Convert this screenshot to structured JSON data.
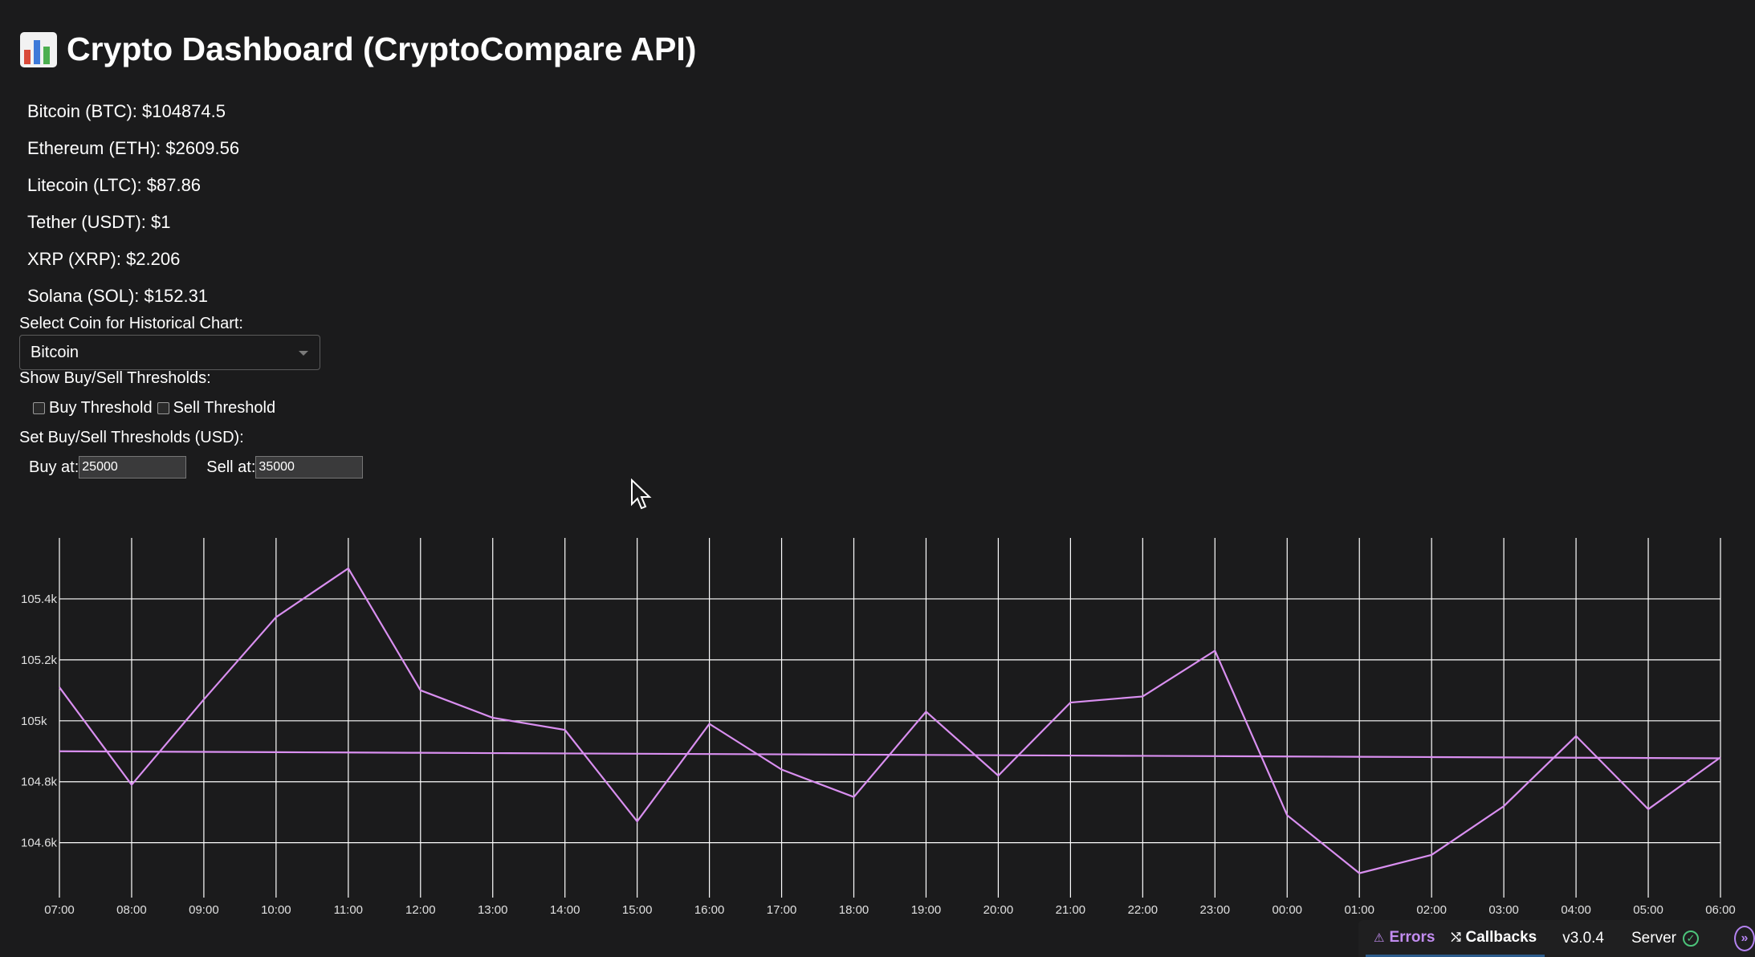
{
  "header": {
    "title": "Crypto Dashboard (CryptoCompare API)",
    "icon": "bar-chart-icon"
  },
  "prices": [
    {
      "label": "Bitcoin (BTC): $104874.5"
    },
    {
      "label": "Ethereum (ETH): $2609.56"
    },
    {
      "label": "Litecoin (LTC): $87.86"
    },
    {
      "label": "Tether (USDT): $1"
    },
    {
      "label": "XRP (XRP): $2.206"
    },
    {
      "label": "Solana (SOL): $152.31"
    }
  ],
  "controls": {
    "coin_label": "Select Coin for Historical Chart:",
    "coin_selected": "Bitcoin",
    "thresholds_label": "Show Buy/Sell Thresholds:",
    "buy_checkbox_label": "Buy Threshold",
    "sell_checkbox_label": "Sell Threshold",
    "set_label": "Set Buy/Sell Thresholds (USD):",
    "buy_label": "Buy at:",
    "buy_value": "25000",
    "sell_label": "Sell at:",
    "sell_value": "35000"
  },
  "chart_data": {
    "type": "line",
    "x": [
      "07:00",
      "08:00",
      "09:00",
      "10:00",
      "11:00",
      "12:00",
      "13:00",
      "14:00",
      "15:00",
      "16:00",
      "17:00",
      "18:00",
      "19:00",
      "20:00",
      "21:00",
      "22:00",
      "23:00",
      "00:00",
      "01:00",
      "02:00",
      "03:00",
      "04:00",
      "05:00",
      "06:00"
    ],
    "series": [
      {
        "values": [
          105110,
          104790,
          105070,
          105340,
          105500,
          105100,
          105010,
          104970,
          104670,
          104990,
          104840,
          104750,
          105030,
          104820,
          105060,
          105080,
          105230,
          104690,
          104500,
          104560,
          104720,
          104950,
          104710,
          104880
        ]
      },
      {
        "values": [
          104900,
          104899,
          104898,
          104897,
          104896,
          104895,
          104894,
          104893,
          104892,
          104891,
          104890,
          104889,
          104888,
          104887,
          104886,
          104885,
          104884,
          104883,
          104882,
          104881,
          104880,
          104879,
          104878,
          104877
        ]
      }
    ],
    "yticks": [
      104600,
      104800,
      105000,
      105200,
      105400
    ],
    "ytick_labels": [
      "104.6k",
      "104.8k",
      "105k",
      "105.2k",
      "105.4k"
    ],
    "ylim": [
      104420,
      105600
    ],
    "line_color": "#d98ff0",
    "grid": true
  },
  "devtools": {
    "errors_label": "Errors",
    "callbacks_label": "Callbacks",
    "version": "v3.0.4",
    "server_label": "Server"
  }
}
